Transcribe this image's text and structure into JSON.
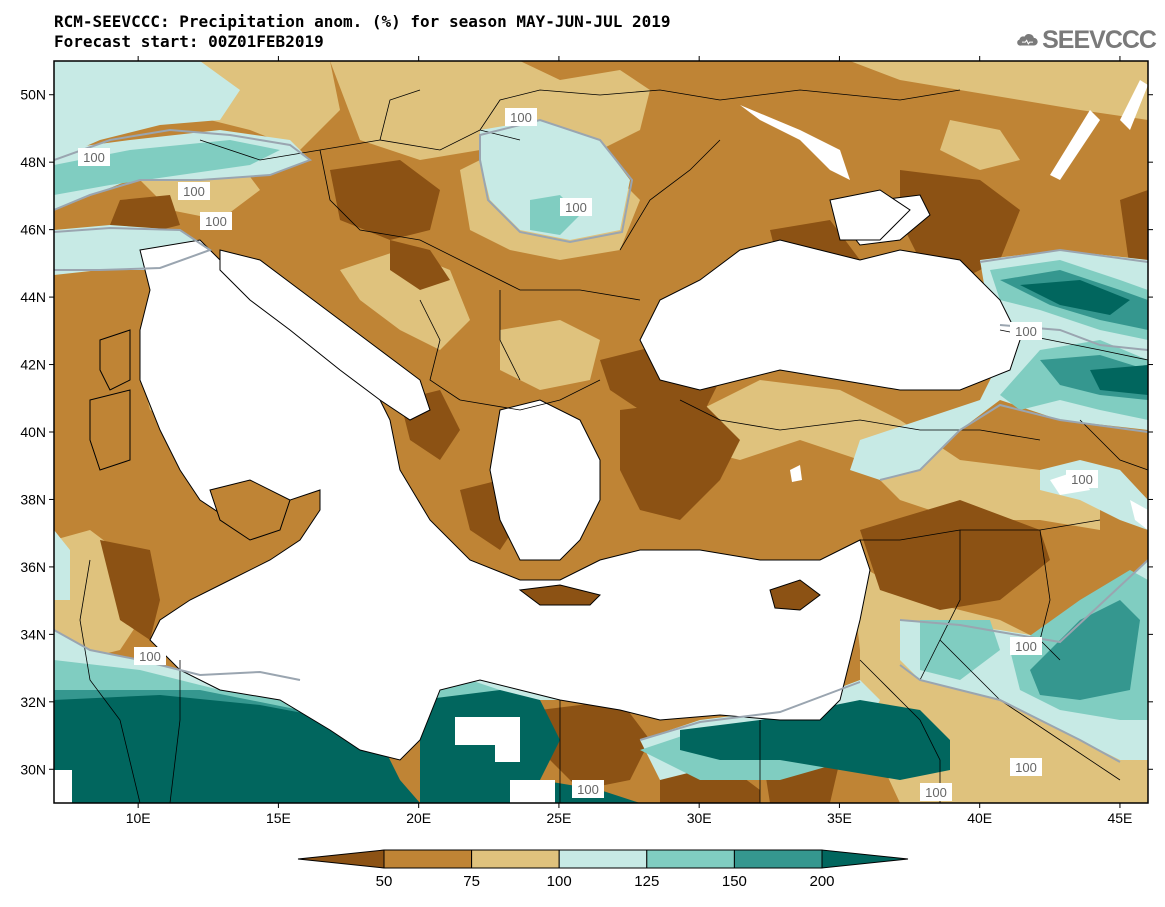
{
  "header": {
    "title_line1": "RCM-SEEVCCC: Precipitation anom. (%) for season MAY-JUN-JUL 2019",
    "title_line2": "Forecast start: 00Z01FEB2019",
    "logo_text": "SEEVCCC",
    "logo_icon": "cloud-icon"
  },
  "map": {
    "lon_range": [
      7,
      46
    ],
    "lat_range": [
      29,
      51
    ],
    "lon_ticks": [
      "10E",
      "15E",
      "20E",
      "25E",
      "30E",
      "35E",
      "40E",
      "45E"
    ],
    "lat_ticks": [
      "50N",
      "48N",
      "46N",
      "44N",
      "42N",
      "40N",
      "38N",
      "36N",
      "34N",
      "32N",
      "30N"
    ],
    "contour_labels": [
      "100",
      "100",
      "100",
      "100",
      "100",
      "100",
      "100",
      "100",
      "100",
      "100",
      "100",
      "100"
    ]
  },
  "colorbar": {
    "labels": [
      "50",
      "75",
      "100",
      "125",
      "150",
      "200"
    ],
    "colors": [
      "#8c5214",
      "#bf8435",
      "#dfc27d",
      "#c7eae5",
      "#80cdc1",
      "#35978f",
      "#01665e"
    ]
  }
}
